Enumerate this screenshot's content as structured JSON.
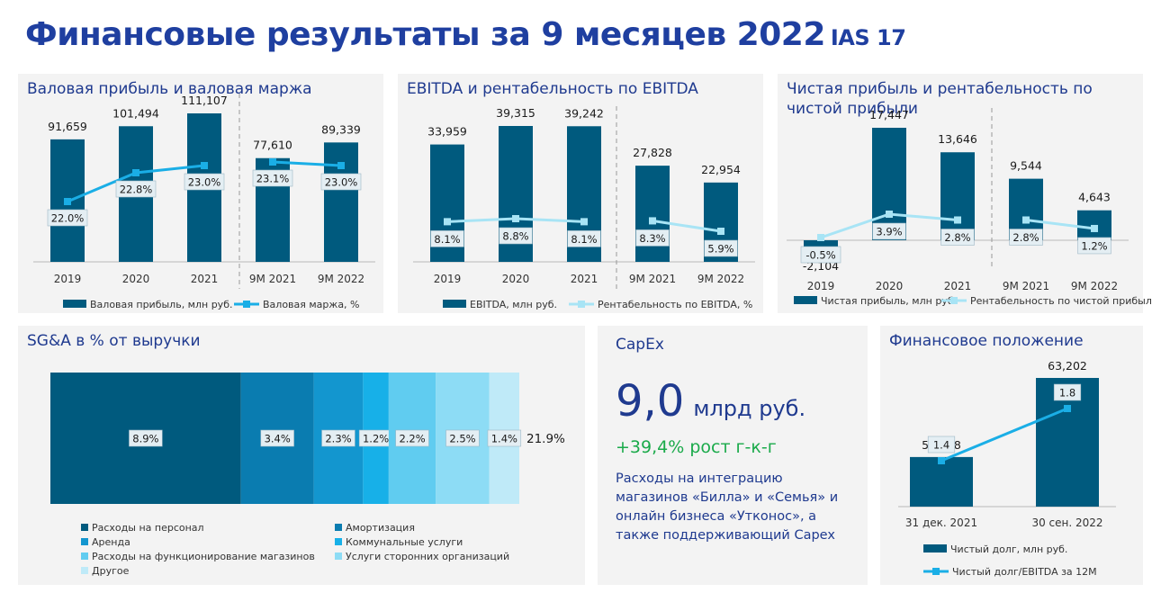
{
  "page": {
    "title": "Финансовые результаты за 9 месяцев 2022",
    "title_suffix": "IAS 17"
  },
  "colors": {
    "bar": "#005a7e",
    "line": "#1aaee6",
    "line_light": "#a8e4f5",
    "label_bg": "#e4eef3",
    "sga": [
      "#005a7e",
      "#0a7cb0",
      "#1396cf",
      "#17b0e8",
      "#60ccf0",
      "#8ddcf5",
      "#bfeaf8"
    ]
  },
  "chart_data": [
    {
      "type": "bar",
      "title": "Валовая прибыль и валовая маржа",
      "categories": [
        "2019",
        "2020",
        "2021",
        "9M 2021",
        "9M 2022"
      ],
      "series": [
        {
          "name": "Валовая прибыль, млн руб.",
          "values": [
            91659,
            101494,
            111107,
            77610,
            89339
          ],
          "labels": [
            "91,659",
            "101,494",
            "111,107",
            "77,610",
            "89,339"
          ]
        },
        {
          "name": "Валовая маржа, %",
          "type": "line",
          "values": [
            22.0,
            22.8,
            23.0,
            23.1,
            23.0
          ],
          "labels": [
            "22.0%",
            "22.8%",
            "23.0%",
            "23.1%",
            "23.0%"
          ]
        }
      ]
    },
    {
      "type": "bar",
      "title": "EBITDA и рентабельность по EBITDA",
      "categories": [
        "2019",
        "2020",
        "2021",
        "9M 2021",
        "9M 2022"
      ],
      "series": [
        {
          "name": "EBITDA, млн руб.",
          "values": [
            33959,
            39315,
            39242,
            27828,
            22954
          ],
          "labels": [
            "33,959",
            "39,315",
            "39,242",
            "27,828",
            "22,954"
          ]
        },
        {
          "name": "Рентабельность по EBITDA, %",
          "type": "line",
          "values": [
            8.1,
            8.8,
            8.1,
            8.3,
            5.9
          ],
          "labels": [
            "8.1%",
            "8.8%",
            "8.1%",
            "8.3%",
            "5.9%"
          ]
        }
      ]
    },
    {
      "type": "bar",
      "title": "Чистая прибыль и рентабельность по чистой прибыли",
      "categories": [
        "2019",
        "2020",
        "2021",
        "9M 2021",
        "9M 2022"
      ],
      "series": [
        {
          "name": "Чистая прибыль, млн руб.",
          "values": [
            -2104,
            17447,
            13646,
            9544,
            4643
          ],
          "labels": [
            "-2,104",
            "17,447",
            "13,646",
            "9,544",
            "4,643"
          ]
        },
        {
          "name": "Рентабельность по чистой прибыли, %",
          "type": "line",
          "values": [
            -0.5,
            3.9,
            2.8,
            2.8,
            1.2
          ],
          "labels": [
            "-0.5%",
            "3.9%",
            "2.8%",
            "2.8%",
            "1.2%"
          ]
        }
      ]
    },
    {
      "type": "bar",
      "stacked": true,
      "title": "SG&A в % от выручки",
      "total_label": "21.9%",
      "categories": [
        "Расходы на персонал",
        "Амортизация",
        "Аренда",
        "Коммунальные услуги",
        "Расходы на функционирование магазинов",
        "Услуги сторонних организаций",
        "Другое"
      ],
      "values": [
        8.9,
        3.4,
        2.3,
        1.2,
        2.2,
        2.5,
        1.4
      ],
      "labels": [
        "8.9%",
        "3.4%",
        "2.3%",
        "1.2%",
        "2.2%",
        "2.5%",
        "1.4%"
      ]
    },
    {
      "type": "bar",
      "title": "Финансовое положение",
      "categories": [
        "31 дек. 2021",
        "30 сен. 2022"
      ],
      "series": [
        {
          "name": "Чистый долг, млн руб.",
          "values": [
            55088,
            63202
          ],
          "labels": [
            "55,088",
            "63,202"
          ]
        },
        {
          "name": "Чистый долг/EBITDA за 12M",
          "type": "line",
          "values": [
            1.4,
            1.8
          ],
          "labels": [
            "1.4",
            "1.8"
          ]
        }
      ]
    }
  ],
  "capex": {
    "title": "CapEx",
    "value": "9,0",
    "unit": "млрд руб.",
    "growth": "+39,4% рост г-к-г",
    "description": "Расходы на интеграцию магазинов «Билла» и «Семья» и онлайн бизнеса «Утконос», а также поддерживающий Capex"
  }
}
